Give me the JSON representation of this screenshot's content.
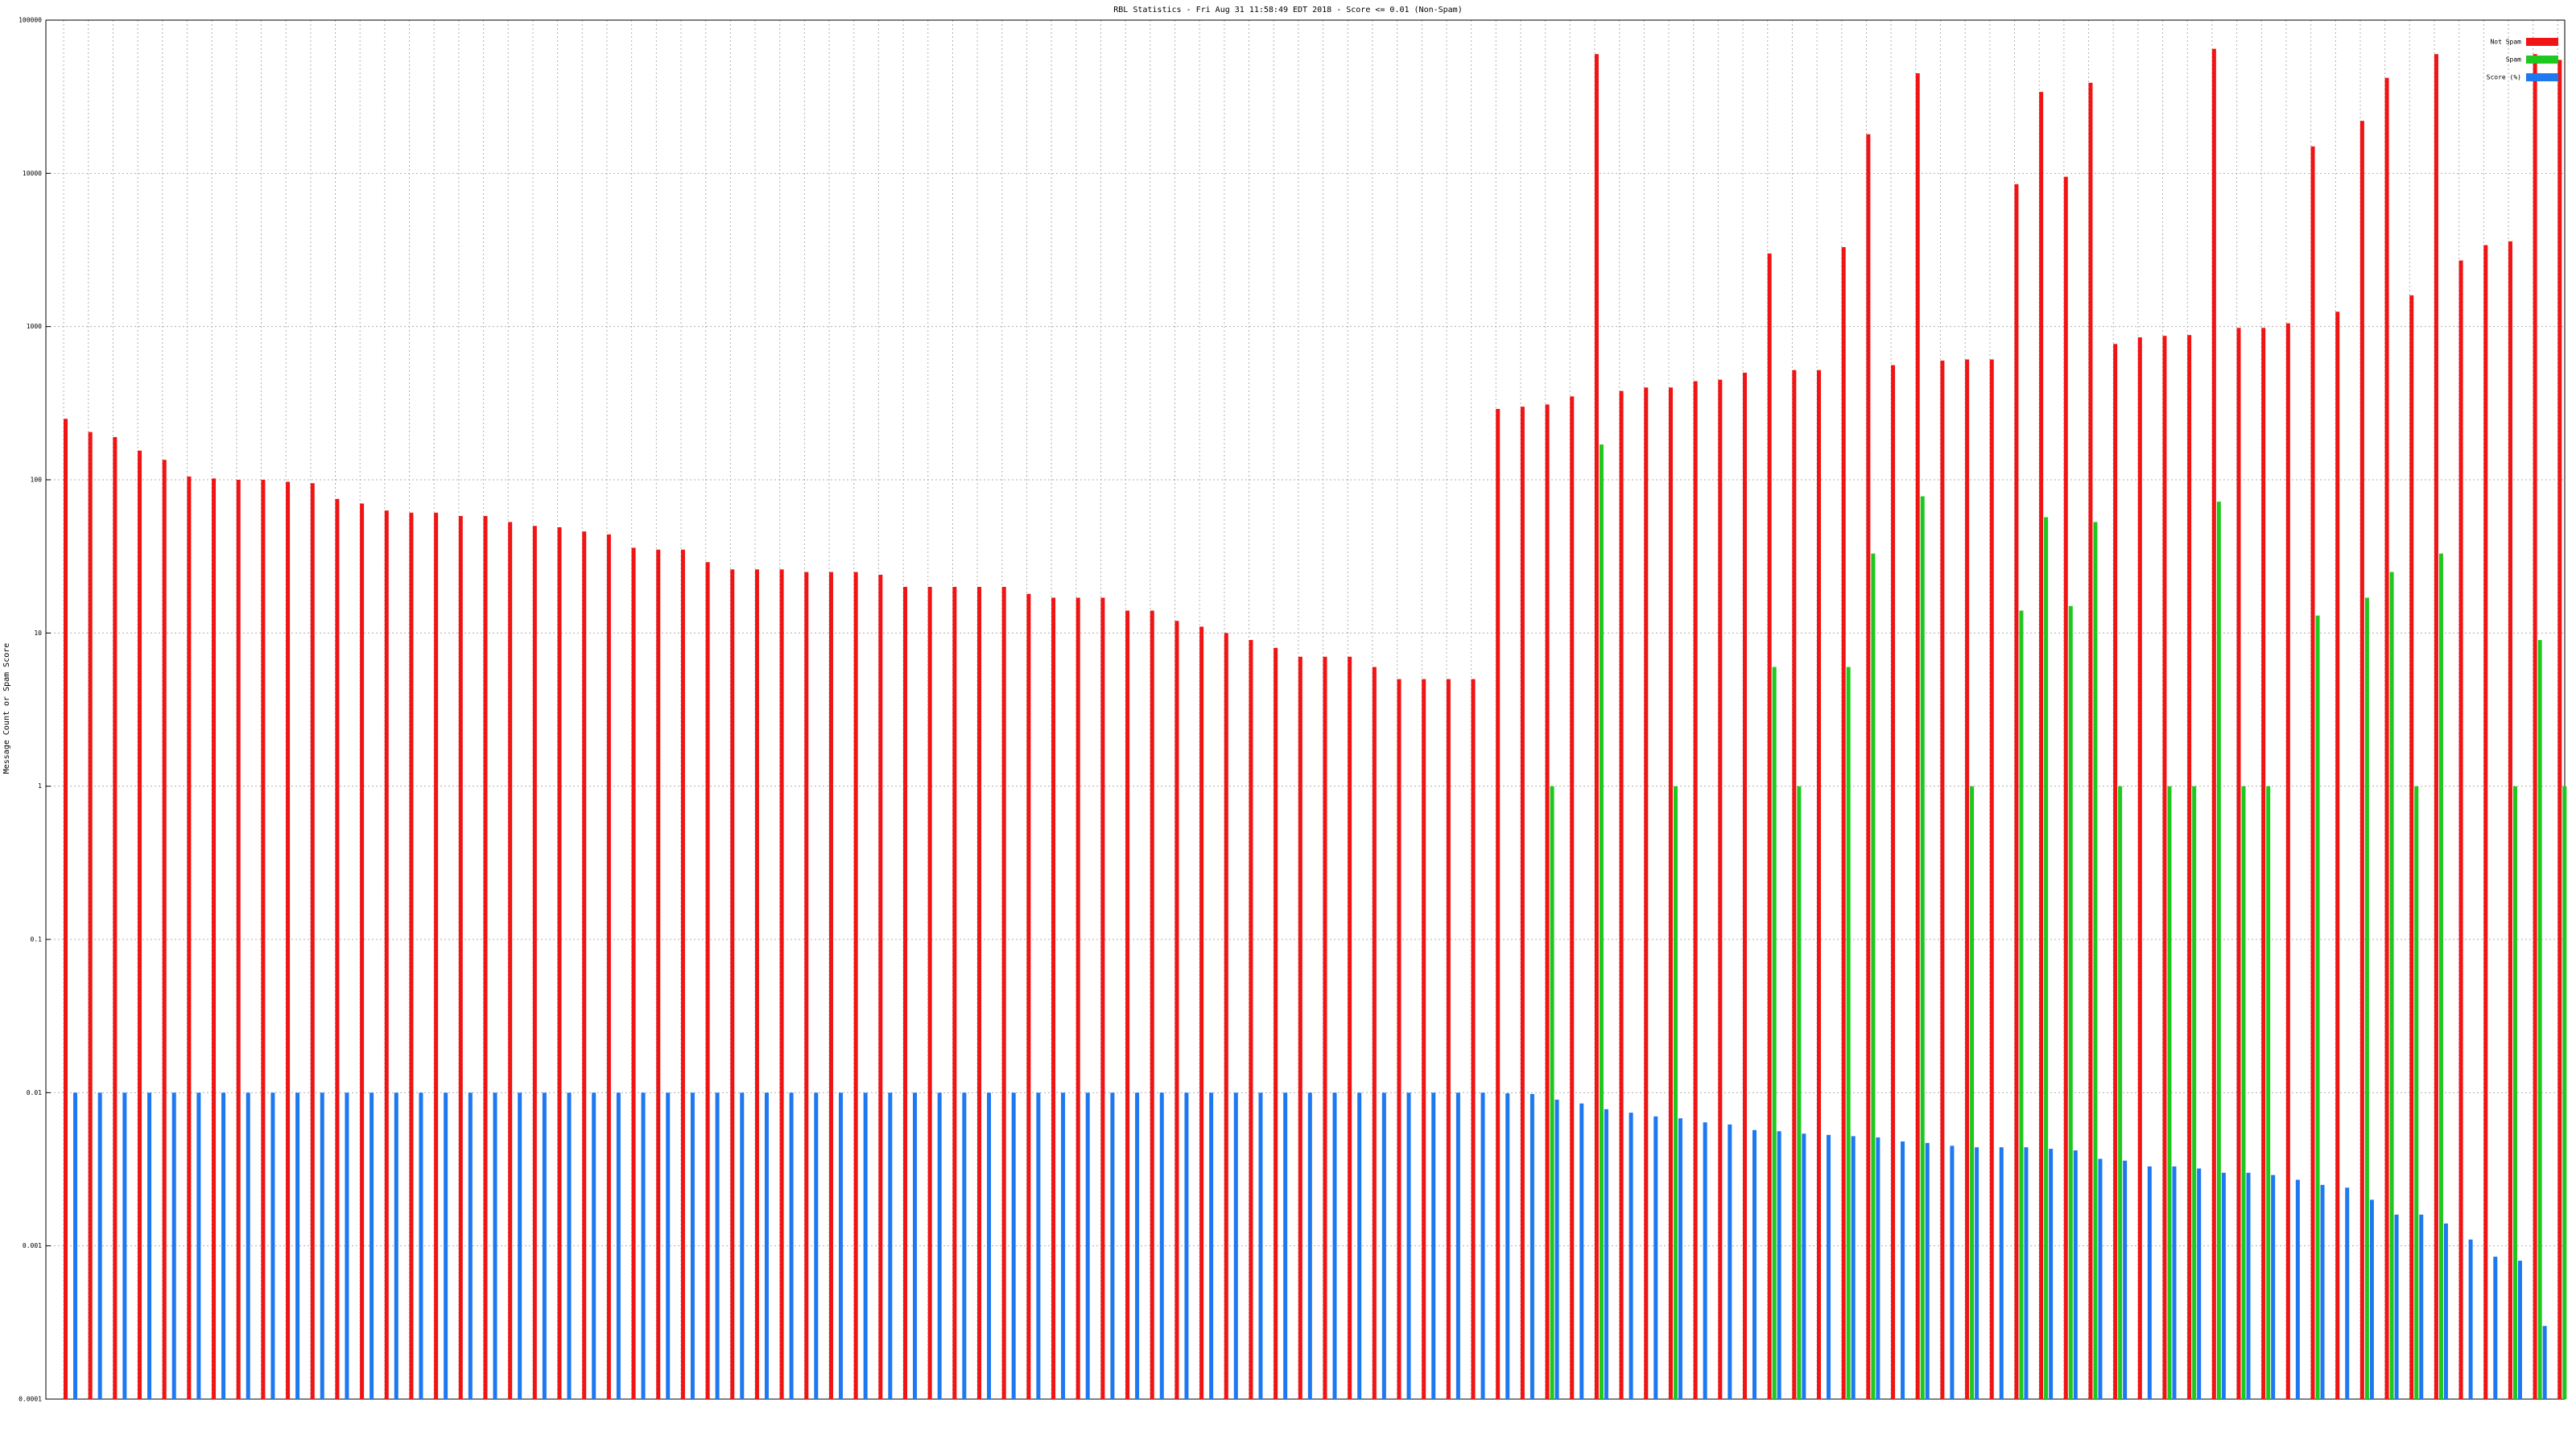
{
  "chart_data": {
    "type": "bar",
    "title": "RBL Statistics - Fri Aug 31 11:58:49 EDT 2018 - Score <= 0.01 (Non-Spam)",
    "y_label": "Message Count or Spam Score",
    "log_scale": true,
    "grid": true,
    "legend": "top-right",
    "ylim": [
      0.0001,
      100000
    ],
    "yticks": [
      0.0001,
      0.001,
      0.01,
      0.1,
      1,
      10,
      100,
      1000,
      10000,
      100000
    ],
    "categories": [
      null,
      null,
      null,
      null,
      null,
      null,
      null,
      null,
      null,
      null,
      null,
      null,
      null,
      null,
      null,
      null,
      null,
      null,
      null,
      null,
      null,
      null,
      null,
      null,
      null,
      null,
      null,
      null,
      null,
      null,
      null,
      null,
      null,
      null,
      null,
      null,
      null,
      null,
      null,
      null,
      null,
      null,
      null,
      null,
      null,
      null,
      null,
      null,
      null,
      null,
      null,
      null,
      null,
      null,
      null,
      null,
      null,
      null,
      null,
      null,
      null,
      null,
      null,
      null,
      null,
      null,
      null,
      null,
      null,
      null,
      null,
      null,
      null,
      null,
      null,
      null,
      null,
      null,
      null,
      null,
      null,
      null,
      null,
      null,
      null,
      null,
      null,
      null,
      null,
      null,
      null,
      null,
      null,
      null,
      null,
      null,
      null,
      null,
      null,
      null,
      null,
      null
    ],
    "series": [
      {
        "name": "Not Spam",
        "color": "#f01414",
        "values": [
          250,
          205,
          190,
          155,
          135,
          105,
          102,
          100,
          100,
          97,
          95,
          75,
          70,
          63,
          61,
          61,
          58,
          58,
          53,
          50,
          49,
          46,
          44,
          36,
          35,
          35,
          29,
          26,
          26,
          26,
          25,
          25,
          25,
          24,
          20,
          20,
          20,
          20,
          20,
          18,
          17,
          17,
          17,
          14,
          14,
          12,
          11,
          10,
          9,
          8,
          7,
          7,
          7,
          6,
          5,
          5,
          5,
          5,
          290,
          300,
          310,
          350,
          60000,
          380,
          400,
          400,
          440,
          450,
          500,
          3000,
          520,
          520,
          3300,
          18000,
          560,
          45000,
          600,
          610,
          610,
          8500,
          34000,
          9500,
          39000,
          770,
          850,
          870,
          880,
          65000,
          980,
          980,
          1050,
          15000,
          1250,
          22000,
          42000,
          1600,
          60000,
          2700,
          3400,
          3600,
          60000,
          55000
        ]
      },
      {
        "name": "Spam",
        "color": "#1ec81e",
        "values": [
          null,
          null,
          null,
          null,
          null,
          null,
          null,
          null,
          null,
          null,
          null,
          null,
          null,
          null,
          null,
          null,
          null,
          null,
          null,
          null,
          null,
          null,
          null,
          null,
          null,
          null,
          null,
          null,
          null,
          null,
          null,
          null,
          null,
          null,
          null,
          null,
          null,
          null,
          null,
          null,
          null,
          null,
          null,
          null,
          null,
          null,
          null,
          null,
          null,
          null,
          null,
          null,
          null,
          null,
          null,
          null,
          null,
          null,
          null,
          null,
          1,
          null,
          170,
          null,
          null,
          1,
          null,
          null,
          null,
          6,
          1,
          null,
          6,
          33,
          null,
          78,
          null,
          1,
          null,
          14,
          57,
          15,
          53,
          1,
          null,
          1,
          1,
          72,
          1,
          1,
          null,
          13,
          null,
          17,
          25,
          1,
          33,
          null,
          null,
          1,
          9,
          1
        ]
      },
      {
        "name": "Score (%)",
        "color": "#1e78f0",
        "values": [
          0.01,
          0.01,
          0.01,
          0.01,
          0.01,
          0.01,
          0.01,
          0.01,
          0.01,
          0.01,
          0.01,
          0.01,
          0.01,
          0.01,
          0.01,
          0.01,
          0.01,
          0.01,
          0.01,
          0.01,
          0.01,
          0.01,
          0.01,
          0.01,
          0.01,
          0.01,
          0.01,
          0.01,
          0.01,
          0.01,
          0.01,
          0.01,
          0.01,
          0.01,
          0.01,
          0.01,
          0.01,
          0.01,
          0.01,
          0.01,
          0.01,
          0.01,
          0.01,
          0.01,
          0.01,
          0.01,
          0.01,
          0.01,
          0.01,
          0.01,
          0.01,
          0.01,
          0.01,
          0.01,
          0.01,
          0.01,
          0.01,
          0.01,
          0.0099,
          0.0098,
          0.009,
          0.0085,
          0.0078,
          0.0074,
          0.007,
          0.0068,
          0.0064,
          0.0062,
          0.0057,
          0.0056,
          0.0054,
          0.0053,
          0.0052,
          0.0051,
          0.0048,
          0.0047,
          0.0045,
          0.0044,
          0.0044,
          0.0044,
          0.0043,
          0.0042,
          0.0037,
          0.0036,
          0.0033,
          0.0033,
          0.0032,
          0.003,
          0.003,
          0.0029,
          0.0027,
          0.0025,
          0.0024,
          0.002,
          0.0016,
          0.0016,
          0.0014,
          0.0011,
          0.00085,
          0.0008,
          0.0003,
          null
        ]
      }
    ]
  }
}
